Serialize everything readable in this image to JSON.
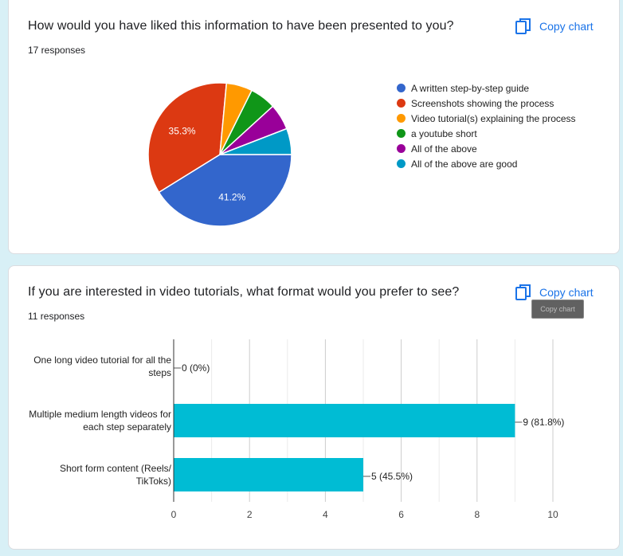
{
  "charts": [
    {
      "question": "How would you have liked this information to have been presented to you?",
      "responses": "17 responses",
      "copy_label": "Copy chart"
    },
    {
      "question": "If you are interested in video tutorials, what format would you prefer to see?",
      "responses": "11 responses",
      "copy_label": "Copy chart",
      "tooltip": "Copy chart"
    }
  ],
  "chart_data": [
    {
      "type": "pie",
      "legend_position": "right",
      "categories": [
        "A written step-by-step guide",
        "Screenshots showing the process",
        "Video tutorial(s) explaining the process",
        "a youtube short",
        "All of the above",
        "All of the above are good"
      ],
      "values": [
        7,
        6,
        1,
        1,
        1,
        1
      ],
      "slice_labels": [
        "41.2%",
        "35.3%",
        "",
        "",
        "",
        ""
      ],
      "colors": [
        "#3366cc",
        "#dc3912",
        "#ff9900",
        "#109618",
        "#990099",
        "#0099c6"
      ]
    },
    {
      "type": "bar",
      "orientation": "horizontal",
      "categories": [
        "One long video tutorial for all the steps",
        "Multiple medium length videos for each step separately",
        "Short form content (Reels/ TikToks)"
      ],
      "category_lines": [
        [
          "One long video tutorial for all the",
          "steps"
        ],
        [
          "Multiple medium length videos for",
          "each step separately"
        ],
        [
          "Short form content (Reels/",
          "TikToks)"
        ]
      ],
      "values": [
        0,
        9,
        5
      ],
      "value_labels": [
        "0 (0%)",
        "9 (81.8%)",
        "5 (45.5%)"
      ],
      "xlim": [
        0,
        10
      ],
      "xticks": [
        0,
        2,
        4,
        6,
        8,
        10
      ],
      "grid": true,
      "color": "#00bcd4"
    }
  ]
}
